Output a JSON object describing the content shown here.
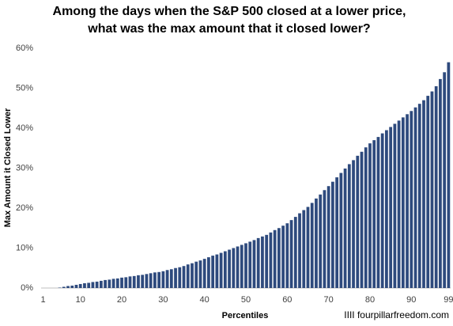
{
  "chart_data": {
    "type": "bar",
    "title": [
      "Among the days when the S&P 500 closed at a lower price,",
      "what was the max amount that it closed lower?"
    ],
    "x_label": "Percentiles",
    "y_label": "Max Amount it Closed Lower",
    "source": "IIII fourpillarfreedom.com",
    "categories": [
      "1",
      null,
      null,
      null,
      null,
      null,
      null,
      null,
      null,
      "10",
      null,
      null,
      null,
      null,
      null,
      null,
      null,
      null,
      null,
      "20",
      null,
      null,
      null,
      null,
      null,
      null,
      null,
      null,
      null,
      "30",
      null,
      null,
      null,
      null,
      null,
      null,
      null,
      null,
      null,
      "40",
      null,
      null,
      null,
      null,
      null,
      null,
      null,
      null,
      null,
      "50",
      null,
      null,
      null,
      null,
      null,
      null,
      null,
      null,
      null,
      "60",
      null,
      null,
      null,
      null,
      null,
      null,
      null,
      null,
      null,
      "70",
      null,
      null,
      null,
      null,
      null,
      null,
      null,
      null,
      null,
      "80",
      null,
      null,
      null,
      null,
      null,
      null,
      null,
      null,
      null,
      "90",
      null,
      null,
      null,
      null,
      null,
      null,
      null,
      null,
      "99"
    ],
    "values": [
      0,
      0,
      0,
      0,
      0.1,
      0.3,
      0.5,
      0.6,
      0.8,
      1.0,
      1.2,
      1.3,
      1.5,
      1.6,
      1.8,
      2.0,
      2.1,
      2.3,
      2.4,
      2.6,
      2.7,
      2.9,
      3.0,
      3.2,
      3.3,
      3.5,
      3.7,
      3.9,
      4.0,
      4.2,
      4.5,
      4.7,
      5.0,
      5.2,
      5.5,
      5.9,
      6.2,
      6.6,
      6.9,
      7.3,
      7.7,
      8.1,
      8.4,
      8.8,
      9.2,
      9.6,
      10.0,
      10.4,
      10.8,
      11.2,
      11.6,
      12.0,
      12.5,
      12.9,
      13.3,
      13.9,
      14.5,
      15.0,
      15.6,
      16.2,
      17.0,
      17.8,
      18.7,
      19.5,
      20.3,
      21.3,
      22.4,
      23.4,
      24.5,
      25.5,
      26.6,
      27.7,
      28.8,
      29.9,
      31.0,
      32.0,
      33.1,
      34.1,
      35.2,
      36.2,
      37.0,
      37.8,
      38.7,
      39.5,
      40.3,
      41.1,
      41.9,
      42.7,
      43.5,
      44.3,
      45.2,
      46.1,
      47.0,
      48.1,
      49.2,
      50.5,
      52.3,
      54.0,
      56.5
    ],
    "color": "#2e4a7d",
    "ylim": [
      0,
      60
    ],
    "yticks": [
      {
        "value": 0,
        "label": "0%"
      },
      {
        "value": 10,
        "label": "10%"
      },
      {
        "value": 20,
        "label": "20%"
      },
      {
        "value": 30,
        "label": "30%"
      },
      {
        "value": 40,
        "label": "40%"
      },
      {
        "value": 50,
        "label": "50%"
      },
      {
        "value": 60,
        "label": "60%"
      }
    ],
    "grid": false
  }
}
